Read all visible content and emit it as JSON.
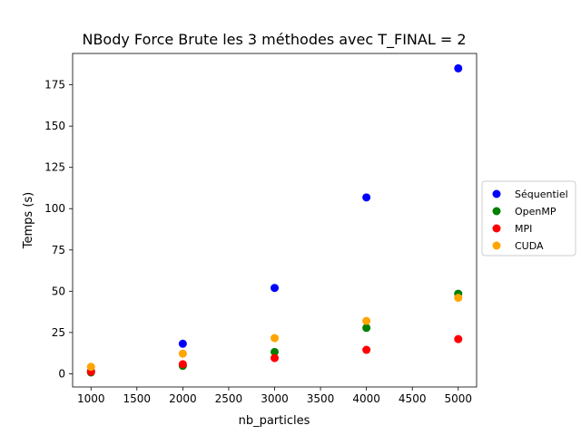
{
  "chart_data": {
    "type": "scatter",
    "title": "NBody Force Brute les 3 méthodes avec T_FINAL = 2",
    "xlabel": "nb_particles",
    "ylabel": "Temps (s)",
    "xlim": [
      800,
      5200
    ],
    "ylim": [
      -8,
      194
    ],
    "x_ticks": [
      1000,
      1500,
      2000,
      2500,
      3000,
      3500,
      4000,
      4500,
      5000
    ],
    "y_ticks": [
      0,
      25,
      50,
      75,
      100,
      125,
      150,
      175
    ],
    "x_tick_labels": [
      "1000",
      "1500",
      "2000",
      "2500",
      "3000",
      "3500",
      "4000",
      "4500",
      "5000"
    ],
    "y_tick_labels": [
      "0",
      "25",
      "50",
      "75",
      "100",
      "125",
      "150",
      "175"
    ],
    "grid": false,
    "legend_position": "outside-right",
    "x": [
      1000,
      2000,
      3000,
      4000,
      5000
    ],
    "series": [
      {
        "name": "Séquentiel",
        "color": "#0000ff",
        "values": [
          1.5,
          18.2,
          52.0,
          106.8,
          185.0
        ]
      },
      {
        "name": "OpenMP",
        "color": "#008000",
        "values": [
          0.8,
          4.8,
          13.2,
          27.8,
          48.5
        ]
      },
      {
        "name": "MPI",
        "color": "#ff0000",
        "values": [
          1.2,
          5.8,
          9.5,
          14.5,
          21.0
        ]
      },
      {
        "name": "CUDA",
        "color": "#ffa500",
        "values": [
          4.2,
          12.2,
          21.6,
          32.0,
          46.0
        ]
      }
    ]
  }
}
